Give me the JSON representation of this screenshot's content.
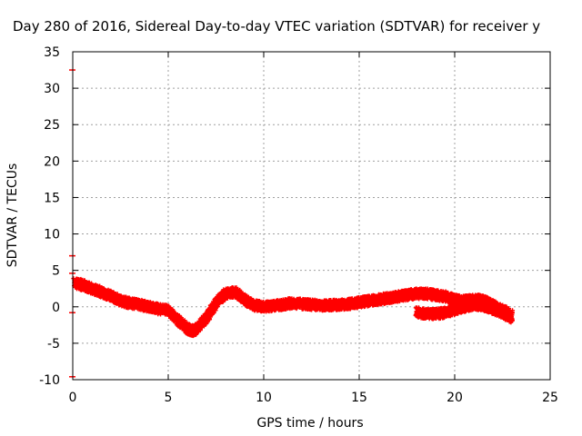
{
  "chart_data": {
    "type": "scatter",
    "title": "Day 280 of 2016, Sidereal Day-to-day VTEC variation (SDTVAR) for receiver y",
    "xlabel": "GPS time / hours",
    "ylabel": "SDTVAR / TECUs",
    "xlim": [
      0,
      25
    ],
    "ylim": [
      -10,
      35
    ],
    "x_ticks": [
      "0",
      "5",
      "10",
      "15",
      "20",
      "25"
    ],
    "y_ticks": [
      "-10",
      "-5",
      "0",
      "5",
      "10",
      "15",
      "20",
      "25",
      "30",
      "35"
    ],
    "grid": true,
    "legend": "none",
    "series_color": "#ff0000",
    "series": [
      {
        "x": [
          0.1,
          0.5,
          1.0,
          1.5,
          2.0,
          2.5,
          3.0,
          3.5,
          4.0,
          4.5,
          5.0,
          5.5,
          6.0,
          6.25,
          6.5,
          7.0,
          7.5,
          8.0,
          8.5,
          9.0,
          9.5,
          10.0,
          10.5,
          11.0,
          11.5,
          12.0,
          12.5,
          13.0,
          13.5,
          14.0,
          14.5,
          15.0,
          15.5,
          16.0,
          16.5,
          17.0,
          17.5,
          18.0,
          18.5,
          19.0,
          19.5,
          20.0,
          20.5,
          21.0,
          21.5,
          22.0,
          22.5,
          23.0
        ],
        "y": [
          3.3,
          3.0,
          2.5,
          2.0,
          1.5,
          0.8,
          0.5,
          0.3,
          0.0,
          -0.3,
          -0.5,
          -1.8,
          -3.0,
          -3.3,
          -3.0,
          -1.5,
          0.5,
          1.8,
          2.0,
          1.0,
          0.2,
          0.0,
          0.1,
          0.3,
          0.5,
          0.4,
          0.3,
          0.2,
          0.2,
          0.3,
          0.4,
          0.6,
          0.8,
          1.0,
          1.2,
          1.4,
          1.6,
          1.8,
          1.8,
          1.6,
          1.4,
          1.0,
          0.8,
          1.0,
          0.9,
          0.2,
          -0.4,
          -1.2
        ]
      },
      {
        "x": [
          18.0,
          18.5,
          19.0,
          19.5,
          20.0,
          20.5,
          21.0,
          21.5,
          22.0,
          22.5,
          23.0
        ],
        "y": [
          -0.7,
          -1.0,
          -1.0,
          -0.8,
          -0.4,
          0.0,
          0.3,
          0.2,
          -0.3,
          -0.8,
          -1.5
        ]
      }
    ],
    "edge_marks_y": [
      32.5,
      7.0,
      4.6,
      -0.8,
      -9.6
    ]
  }
}
